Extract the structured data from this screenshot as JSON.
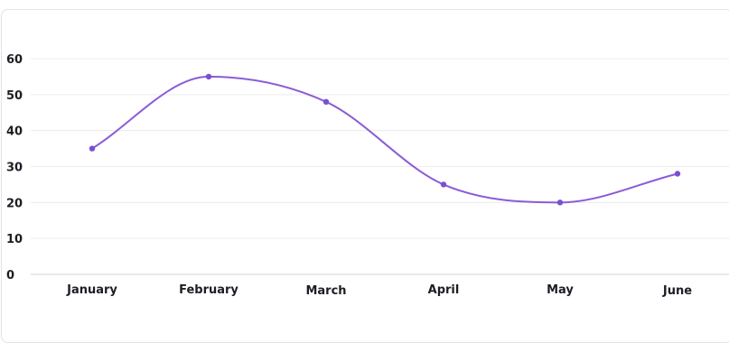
{
  "colors": {
    "line": "#8a5cd6",
    "point": "#7b4fd0",
    "grid": "#ececec",
    "axis": "#d6d6d6"
  },
  "chart_data": {
    "type": "line",
    "categories": [
      "January",
      "February",
      "March",
      "April",
      "May",
      "June"
    ],
    "series": [
      {
        "values": [
          35,
          55,
          48,
          25,
          20,
          28
        ]
      }
    ],
    "yticks": [
      0,
      10,
      20,
      30,
      40,
      50,
      60
    ],
    "ylim": [
      0,
      60
    ],
    "grid": true,
    "smooth": true,
    "legend": "none"
  }
}
